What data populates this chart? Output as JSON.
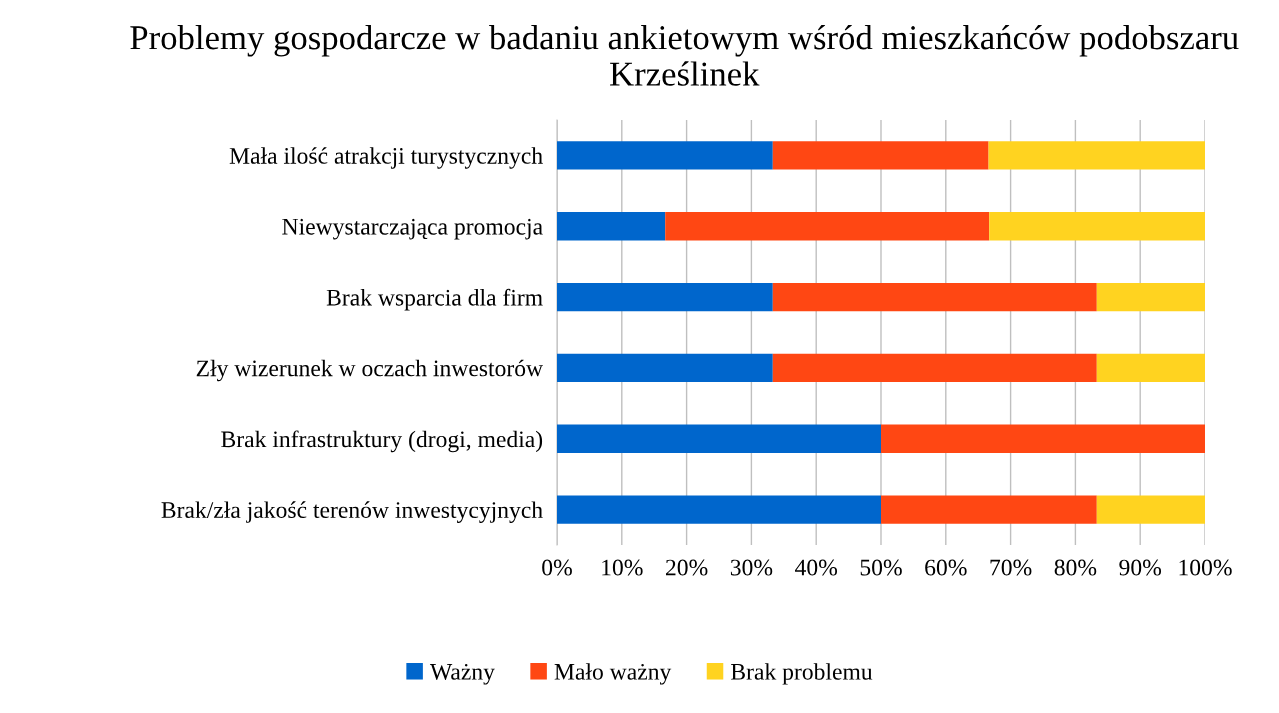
{
  "chart_data": {
    "type": "bar",
    "orientation": "horizontal",
    "stacked": true,
    "title": "Problemy gospodarcze w badaniu ankietowym wśród mieszkańców podobszaru Krześlinek",
    "categories": [
      "Mała ilość atrakcji turystycznych",
      "Niewystarczająca promocja",
      "Brak wsparcia dla firm",
      "Zły wizerunek w oczach inwestorów",
      "Brak infrastruktury (drogi, media)",
      "Brak/zła jakość terenów inwestycyjnych"
    ],
    "series": [
      {
        "name": "Ważny",
        "color": "#0066cc",
        "values": [
          33.3,
          16.7,
          33.3,
          33.3,
          50,
          50
        ]
      },
      {
        "name": "Mało ważny",
        "color": "#ff4713",
        "values": [
          33.3,
          50,
          50,
          50,
          50,
          33.3
        ]
      },
      {
        "name": "Brak problemu",
        "color": "#ffd320",
        "values": [
          33.4,
          33.3,
          16.7,
          16.7,
          0,
          16.7
        ]
      }
    ],
    "xlim": [
      0,
      100
    ],
    "xticks": [
      {
        "value": 0,
        "label": "0%"
      },
      {
        "value": 10,
        "label": "10%"
      },
      {
        "value": 20,
        "label": "20%"
      },
      {
        "value": 30,
        "label": "30%"
      },
      {
        "value": 40,
        "label": "40%"
      },
      {
        "value": 50,
        "label": "50%"
      },
      {
        "value": 60,
        "label": "60%"
      },
      {
        "value": 70,
        "label": "70%"
      },
      {
        "value": 80,
        "label": "80%"
      },
      {
        "value": 90,
        "label": "90%"
      },
      {
        "value": 100,
        "label": "100%"
      }
    ],
    "grid": "x",
    "legend": "bottom"
  }
}
